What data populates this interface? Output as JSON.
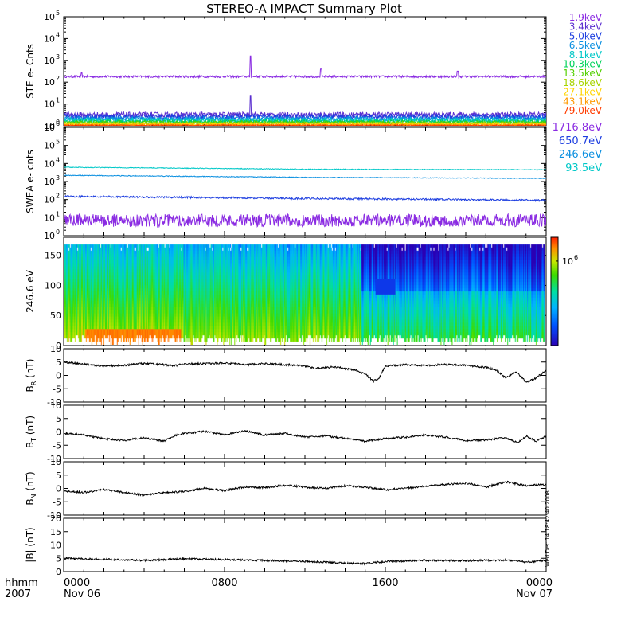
{
  "title": "STEREO-A IMPACT Summary Plot",
  "colors": {
    "axis": "#000000",
    "bg": "#ffffff"
  },
  "footer": {
    "time_label": "hhmm",
    "year": "2007",
    "ticks": [
      {
        "t": 0,
        "time": "0000",
        "date": "Nov 06"
      },
      {
        "t": 8,
        "time": "0800",
        "date": ""
      },
      {
        "t": 16,
        "time": "1600",
        "date": ""
      },
      {
        "t": 24,
        "time": "0000",
        "date": "Nov 07"
      }
    ],
    "stamp": "Wed Dec 14 18:42:40 2008"
  },
  "chart_data": [
    {
      "id": "ste",
      "type": "line",
      "yscale": "log",
      "ylabel": "STE e- Cnts",
      "xlim": [
        0,
        24
      ],
      "ylim": [
        1,
        100000
      ],
      "yticks": [
        {
          "v": 1,
          "base": "10",
          "exp": "0"
        },
        {
          "v": 10,
          "base": "10",
          "exp": "1"
        },
        {
          "v": 100,
          "base": "10",
          "exp": "2"
        },
        {
          "v": 1000,
          "base": "10",
          "exp": "3"
        },
        {
          "v": 10000,
          "base": "10",
          "exp": "4"
        },
        {
          "v": 100000,
          "base": "10",
          "exp": "5"
        }
      ],
      "series": [
        {
          "name": "1.9keV",
          "color": "#8a2be2",
          "level": 180,
          "noise": 0.05,
          "spikes": [
            [
              0.9,
              280
            ],
            [
              9.3,
              1600
            ],
            [
              12.8,
              400
            ],
            [
              19.6,
              320
            ]
          ]
        },
        {
          "name": "3.4keV",
          "color": "#5a2ecf",
          "level": 3.2,
          "noise": 0.12,
          "spikes": [
            [
              9.3,
              25
            ]
          ]
        },
        {
          "name": "5.0keV",
          "color": "#1e3fe0",
          "level": 2.6,
          "noise": 0.12,
          "spikes": []
        },
        {
          "name": "6.5keV",
          "color": "#0a8fe0",
          "level": 2.1,
          "noise": 0.1,
          "spikes": []
        },
        {
          "name": "8.1keV",
          "color": "#00c8c8",
          "level": 1.8,
          "noise": 0.1,
          "spikes": []
        },
        {
          "name": "10.3keV",
          "color": "#00d25a",
          "level": 1.55,
          "noise": 0.08,
          "spikes": []
        },
        {
          "name": "13.5keV",
          "color": "#52d000",
          "level": 1.4,
          "noise": 0.07,
          "spikes": []
        },
        {
          "name": "18.6keV",
          "color": "#a8d400",
          "level": 1.28,
          "noise": 0.06,
          "spikes": []
        },
        {
          "name": "27.1keV",
          "color": "#ffd400",
          "level": 1.18,
          "noise": 0.05,
          "spikes": []
        },
        {
          "name": "43.1keV",
          "color": "#ff9a00",
          "level": 1.1,
          "noise": 0.04,
          "spikes": []
        },
        {
          "name": "79.0keV",
          "color": "#ff3c00",
          "level": 1.04,
          "noise": 0.03,
          "spikes": []
        }
      ]
    },
    {
      "id": "swea",
      "type": "line",
      "yscale": "log",
      "ylabel": "SWEA e- cnts",
      "xlim": [
        0,
        24
      ],
      "ylim": [
        1,
        1000000
      ],
      "yticks": [
        {
          "v": 1,
          "base": "10",
          "exp": "0"
        },
        {
          "v": 10,
          "base": "10",
          "exp": "1"
        },
        {
          "v": 100,
          "base": "10",
          "exp": "2"
        },
        {
          "v": 1000,
          "base": "10",
          "exp": "3"
        },
        {
          "v": 10000,
          "base": "10",
          "exp": "4"
        },
        {
          "v": 100000,
          "base": "10",
          "exp": "5"
        },
        {
          "v": 1000000,
          "base": "10",
          "exp": "6"
        }
      ],
      "series": [
        {
          "name": "1716.8eV",
          "color": "#8a2be2",
          "level": 7,
          "noise": 0.35,
          "trend": []
        },
        {
          "name": "650.7eV",
          "color": "#1e3fe0",
          "level": 140,
          "noise": 0.05,
          "trend": [
            [
              0,
              150
            ],
            [
              12,
              115
            ],
            [
              24,
              90
            ]
          ]
        },
        {
          "name": "246.6eV",
          "color": "#0a8fe0",
          "level": 2000,
          "noise": 0.02,
          "trend": [
            [
              0,
              2200
            ],
            [
              12,
              1700
            ],
            [
              24,
              1500
            ]
          ]
        },
        {
          "name": "93.5eV",
          "color": "#00c8c8",
          "level": 6000,
          "noise": 0.02,
          "trend": [
            [
              0,
              6200
            ],
            [
              12,
              4800
            ],
            [
              24,
              4500
            ]
          ]
        }
      ]
    },
    {
      "id": "pad",
      "type": "heatmap",
      "ylabel": "246.6 eV",
      "xlim": [
        0,
        24
      ],
      "ylim": [
        0,
        180
      ],
      "yticks": [
        0,
        50,
        100,
        150
      ],
      "colorbar": {
        "tick_base": "10",
        "tick_exp": "6"
      }
    },
    {
      "id": "br",
      "type": "line",
      "xlim": [
        0,
        24
      ],
      "ylim": [
        -10,
        10
      ],
      "ylabel": {
        "pre": "B",
        "sub": "R",
        "post": " (nT)"
      },
      "yticks": [
        -10,
        -5,
        0,
        5,
        10
      ],
      "anchors": [
        [
          0,
          5
        ],
        [
          1,
          4.2
        ],
        [
          2,
          3.5
        ],
        [
          3,
          3.8
        ],
        [
          4,
          4.5
        ],
        [
          5,
          4
        ],
        [
          5.5,
          3.6
        ],
        [
          6,
          4.3
        ],
        [
          8,
          4.6
        ],
        [
          9,
          4
        ],
        [
          10,
          4.4
        ],
        [
          11,
          4
        ],
        [
          11.8,
          3.7
        ],
        [
          12.5,
          2.6
        ],
        [
          13.5,
          3.2
        ],
        [
          14.5,
          2
        ],
        [
          15,
          0.5
        ],
        [
          15.4,
          -2.2
        ],
        [
          15.7,
          -1
        ],
        [
          16,
          3.5
        ],
        [
          17,
          4
        ],
        [
          18,
          3.7
        ],
        [
          19,
          4.1
        ],
        [
          20,
          3.8
        ],
        [
          21,
          3
        ],
        [
          21.5,
          2
        ],
        [
          22,
          -1
        ],
        [
          22.5,
          1.5
        ],
        [
          23,
          -2.5
        ],
        [
          23.5,
          -1
        ],
        [
          24,
          2
        ]
      ]
    },
    {
      "id": "bt",
      "type": "line",
      "xlim": [
        0,
        24
      ],
      "ylim": [
        -10,
        10
      ],
      "ylabel": {
        "pre": "B",
        "sub": "T",
        "post": " (nT)"
      },
      "yticks": [
        -10,
        -5,
        0,
        5,
        10
      ],
      "anchors": [
        [
          0,
          -0.5
        ],
        [
          1,
          -1.2
        ],
        [
          2,
          -2.5
        ],
        [
          3,
          -3.2
        ],
        [
          4,
          -2.2
        ],
        [
          5,
          -3.5
        ],
        [
          5.5,
          -1.5
        ],
        [
          6,
          -0.5
        ],
        [
          7,
          0.2
        ],
        [
          8,
          -1
        ],
        [
          9,
          0.5
        ],
        [
          10,
          -1.2
        ],
        [
          11,
          -0.5
        ],
        [
          12,
          -2
        ],
        [
          13,
          -1.5
        ],
        [
          14,
          -2.5
        ],
        [
          15,
          -3.5
        ],
        [
          16,
          -2.5
        ],
        [
          17,
          -2
        ],
        [
          18,
          -1.2
        ],
        [
          19,
          -2
        ],
        [
          20,
          -3.2
        ],
        [
          21,
          -3
        ],
        [
          22,
          -2.2
        ],
        [
          22.6,
          -4.2
        ],
        [
          23,
          -1.5
        ],
        [
          23.5,
          -3.5
        ],
        [
          24,
          -1.5
        ]
      ]
    },
    {
      "id": "bn",
      "type": "line",
      "xlim": [
        0,
        24
      ],
      "ylim": [
        -10,
        10
      ],
      "ylabel": {
        "pre": "B",
        "sub": "N",
        "post": " (nT)"
      },
      "yticks": [
        -10,
        -5,
        0,
        5,
        10
      ],
      "anchors": [
        [
          0,
          -1
        ],
        [
          1,
          -1.5
        ],
        [
          2,
          -0.5
        ],
        [
          3,
          -1.5
        ],
        [
          4,
          -2.5
        ],
        [
          5,
          -1.5
        ],
        [
          6,
          -1.2
        ],
        [
          7,
          0
        ],
        [
          8,
          -0.8
        ],
        [
          9,
          0.5
        ],
        [
          10,
          0.3
        ],
        [
          11,
          1.2
        ],
        [
          12,
          0.5
        ],
        [
          13,
          0
        ],
        [
          14,
          1
        ],
        [
          15,
          0.5
        ],
        [
          16,
          -0.5
        ],
        [
          17,
          0
        ],
        [
          18,
          0.8
        ],
        [
          19,
          1.5
        ],
        [
          20,
          2
        ],
        [
          21,
          0.5
        ],
        [
          22,
          2.5
        ],
        [
          23,
          1
        ],
        [
          24,
          1.5
        ]
      ]
    },
    {
      "id": "bmag",
      "type": "line",
      "xlim": [
        0,
        24
      ],
      "ylim": [
        0,
        20
      ],
      "ylabel": {
        "pre": "|B| (nT)",
        "sub": "",
        "post": ""
      },
      "yticks": [
        0,
        5,
        10,
        15,
        20
      ],
      "anchors": [
        [
          0,
          5
        ],
        [
          2,
          4.6
        ],
        [
          4,
          4.2
        ],
        [
          6,
          4.8
        ],
        [
          8,
          4.5
        ],
        [
          10,
          4.2
        ],
        [
          12,
          3.8
        ],
        [
          13,
          3.5
        ],
        [
          14,
          3.2
        ],
        [
          15,
          3
        ],
        [
          16,
          3.8
        ],
        [
          18,
          4.2
        ],
        [
          20,
          4.1
        ],
        [
          22,
          4.3
        ],
        [
          23,
          3.5
        ],
        [
          24,
          4.2
        ]
      ]
    }
  ]
}
